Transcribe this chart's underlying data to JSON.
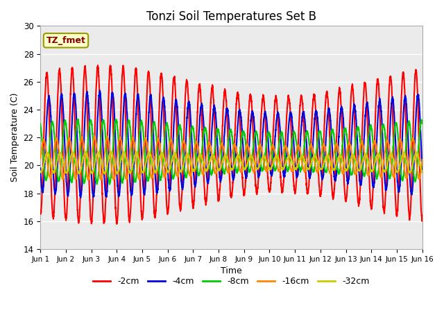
{
  "title": "Tonzi Soil Temperatures Set B",
  "xlabel": "Time",
  "ylabel": "Soil Temperature (C)",
  "ylim": [
    14,
    30
  ],
  "xlim": [
    0,
    15
  ],
  "xtick_labels": [
    "Jun 1",
    "Jun 2",
    "Jun 3",
    "Jun 4",
    "Jun 5",
    "Jun 6",
    "Jun 7",
    "Jun 8",
    "Jun 9",
    "Jun 10",
    "Jun 11",
    "Jun 12",
    "Jun 13",
    "Jun 14",
    "Jun 15",
    "Jun 16"
  ],
  "xtick_positions": [
    0,
    1,
    2,
    3,
    4,
    5,
    6,
    7,
    8,
    9,
    10,
    11,
    12,
    13,
    14,
    15
  ],
  "series_colors": [
    "#ff0000",
    "#0000dd",
    "#00cc00",
    "#ff8800",
    "#cccc00"
  ],
  "series_labels": [
    "-2cm",
    "-4cm",
    "-8cm",
    "-16cm",
    "-32cm"
  ],
  "annotation_text": "TZ_fmet",
  "annotation_bg": "#ffffcc",
  "annotation_border": "#999900",
  "bg_color": "#ebebeb",
  "title_fontsize": 12,
  "axis_fontsize": 9,
  "legend_fontsize": 9,
  "n_points": 3000,
  "base_2cm": 21.5,
  "amp_2cm": 4.5,
  "base_4cm": 21.5,
  "amp_4cm": 3.0,
  "base_8cm": 21.0,
  "amp_8cm": 1.8,
  "base_16cm": 20.5,
  "amp_16cm": 1.2,
  "base_32cm": 20.2,
  "amp_32cm": 0.6,
  "phase_4cm": 0.08,
  "phase_8cm": 0.22,
  "phase_16cm": 0.38,
  "phase_32cm": 0.52
}
